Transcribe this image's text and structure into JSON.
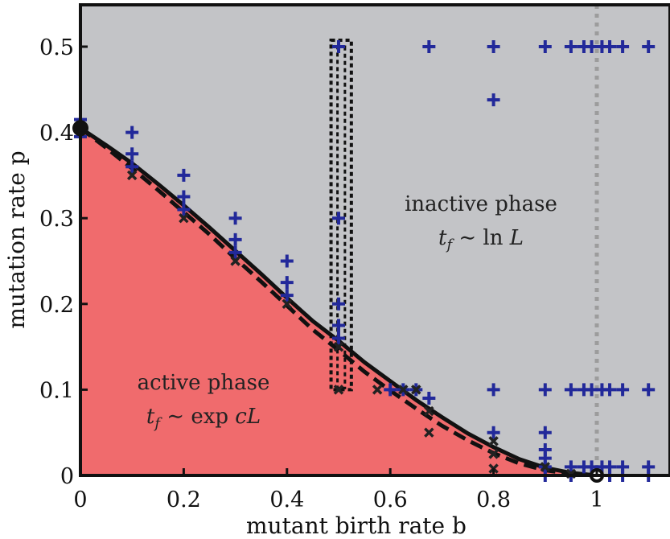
{
  "chart_data": {
    "type": "scatter",
    "xlabel": "mutant birth rate b",
    "ylabel": "mutation rate p",
    "xlim": [
      0,
      1.14
    ],
    "ylim": [
      0,
      0.55
    ],
    "x_ticks": [
      "0",
      "0.2",
      "0.4",
      "0.6",
      "0.8",
      "1"
    ],
    "y_ticks": [
      "0",
      "0.1",
      "0.2",
      "0.3",
      "0.4",
      "0.5"
    ],
    "colors": {
      "inactive_region": "#c3c4c7",
      "active_region": "#f06b6d",
      "plus_markers": "#22299a",
      "cross_markers": "#222222",
      "boundary": "#111111",
      "guide_line": "#9c9c9c"
    },
    "regions": {
      "inactive": {
        "label": "inactive phase",
        "formula": "t_f ~ ln L"
      },
      "active": {
        "label": "active phase",
        "formula": "t_f ~ exp cL"
      }
    },
    "boundary_curve": {
      "style": "solid",
      "x": [
        0,
        0.05,
        0.1,
        0.15,
        0.2,
        0.25,
        0.3,
        0.35,
        0.4,
        0.45,
        0.5,
        0.55,
        0.6,
        0.65,
        0.7,
        0.75,
        0.8,
        0.85,
        0.9,
        0.95,
        1.0
      ],
      "y": [
        0.405,
        0.385,
        0.364,
        0.34,
        0.315,
        0.289,
        0.262,
        0.235,
        0.207,
        0.18,
        0.157,
        0.132,
        0.11,
        0.088,
        0.068,
        0.049,
        0.033,
        0.019,
        0.009,
        0.003,
        0.0
      ]
    },
    "boundary_dashed": {
      "style": "dashed",
      "x": [
        0,
        0.05,
        0.1,
        0.15,
        0.2,
        0.25,
        0.3,
        0.35,
        0.4,
        0.45,
        0.5,
        0.55,
        0.6,
        0.65,
        0.7,
        0.75,
        0.8,
        0.85,
        0.9,
        0.95,
        1.0
      ],
      "y": [
        0.405,
        0.382,
        0.358,
        0.333,
        0.307,
        0.281,
        0.253,
        0.226,
        0.198,
        0.17,
        0.146,
        0.121,
        0.099,
        0.078,
        0.058,
        0.041,
        0.026,
        0.014,
        0.006,
        0.002,
        0.0
      ]
    },
    "highlight_box": {
      "x": [
        0.49,
        0.52
      ],
      "y": [
        0.1,
        0.5
      ]
    },
    "vertical_guide_x": 1.0,
    "endpoints": [
      {
        "x": 0,
        "y": 0.405,
        "fill": "filled"
      },
      {
        "x": 1.0,
        "y": 0.0,
        "fill": "open"
      }
    ],
    "series": [
      {
        "marker": "plus",
        "points": [
          [
            0,
            0.415
          ],
          [
            0,
            0.405
          ],
          [
            0,
            0.395
          ],
          [
            0.1,
            0.4
          ],
          [
            0.1,
            0.375
          ],
          [
            0.1,
            0.36
          ],
          [
            0.2,
            0.35
          ],
          [
            0.2,
            0.325
          ],
          [
            0.2,
            0.31
          ],
          [
            0.3,
            0.3
          ],
          [
            0.3,
            0.275
          ],
          [
            0.3,
            0.26
          ],
          [
            0.4,
            0.25
          ],
          [
            0.4,
            0.225
          ],
          [
            0.4,
            0.21
          ],
          [
            0.5,
            0.5
          ],
          [
            0.5,
            0.3
          ],
          [
            0.5,
            0.2
          ],
          [
            0.5,
            0.175
          ],
          [
            0.5,
            0.16
          ],
          [
            0.6,
            0.1
          ],
          [
            0.625,
            0.1
          ],
          [
            0.65,
            0.1
          ],
          [
            0.675,
            0.09
          ],
          [
            0.8,
            0.05
          ],
          [
            0.8,
            0.1
          ],
          [
            0.8,
            0.438
          ],
          [
            0.8,
            0.5
          ],
          [
            0.675,
            0.5
          ],
          [
            0.9,
            0.5
          ],
          [
            0.9,
            0.1
          ],
          [
            0.9,
            0.05
          ],
          [
            0.9,
            0.03
          ],
          [
            0.9,
            0.02
          ],
          [
            0.9,
            0.01
          ],
          [
            0.9,
            0.0
          ],
          [
            0.95,
            0.5
          ],
          [
            0.95,
            0.1
          ],
          [
            0.95,
            0.01
          ],
          [
            0.95,
            0.0
          ],
          [
            0.975,
            0.5
          ],
          [
            0.975,
            0.1
          ],
          [
            0.975,
            0.01
          ],
          [
            0.99,
            0.5
          ],
          [
            0.99,
            0.1
          ],
          [
            0.99,
            0.01
          ],
          [
            1.01,
            0.5
          ],
          [
            1.01,
            0.1
          ],
          [
            1.01,
            0.01
          ],
          [
            1.025,
            0.5
          ],
          [
            1.025,
            0.1
          ],
          [
            1.025,
            0.01
          ],
          [
            1.025,
            0.0
          ],
          [
            1.05,
            0.5
          ],
          [
            1.05,
            0.1
          ],
          [
            1.05,
            0.01
          ],
          [
            1.05,
            0.0
          ],
          [
            1.1,
            0.5
          ],
          [
            1.1,
            0.1
          ],
          [
            1.1,
            0.01
          ],
          [
            1.1,
            0.0
          ]
        ]
      },
      {
        "marker": "cross",
        "points": [
          [
            0.1,
            0.35
          ],
          [
            0.2,
            0.3
          ],
          [
            0.3,
            0.25
          ],
          [
            0.4,
            0.2
          ],
          [
            0.5,
            0.15
          ],
          [
            0.5,
            0.1
          ],
          [
            0.575,
            0.1
          ],
          [
            0.625,
            0.1
          ],
          [
            0.65,
            0.1
          ],
          [
            0.675,
            0.075
          ],
          [
            0.675,
            0.05
          ],
          [
            0.8,
            0.04
          ],
          [
            0.8,
            0.025
          ],
          [
            0.8,
            0.008
          ],
          [
            0.9,
            0.01
          ],
          [
            0.95,
            0.002
          ]
        ]
      }
    ]
  }
}
